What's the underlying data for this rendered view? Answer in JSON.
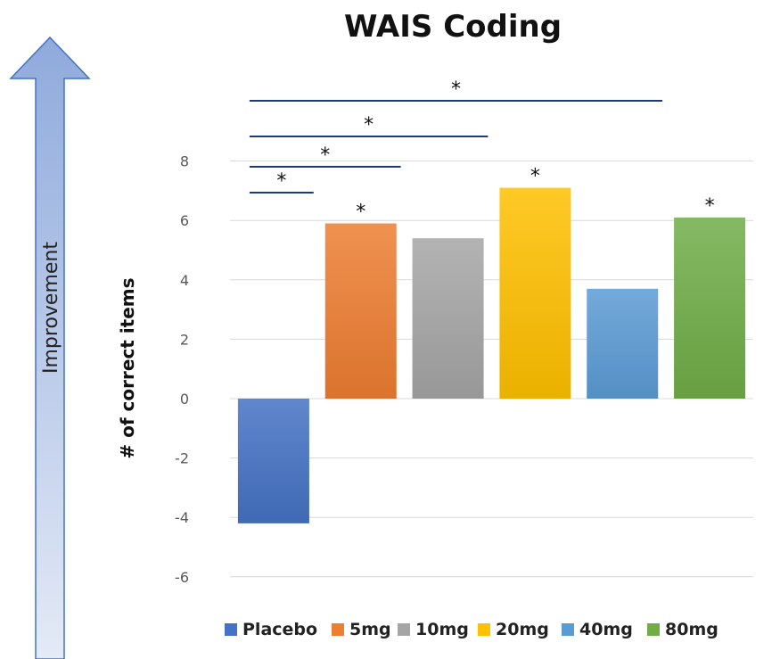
{
  "chart_data": {
    "type": "bar",
    "title": "WAIS Coding",
    "ylabel": "# of correct items",
    "side_label": "Improvement",
    "categories": [
      "Placebo",
      "5mg",
      "10mg",
      "20mg",
      "40mg",
      "80mg"
    ],
    "values": [
      -4.2,
      5.9,
      5.4,
      7.1,
      3.7,
      6.1
    ],
    "colors": [
      "#4472C4",
      "#ED7D31",
      "#A5A5A5",
      "#FFC000",
      "#5B9BD5",
      "#70AD47"
    ],
    "significant": [
      false,
      true,
      false,
      true,
      false,
      true
    ],
    "bracket_targets": [
      "5mg",
      "10mg",
      "20mg",
      "80mg"
    ],
    "marker": "*",
    "ylim": [
      -7,
      9
    ],
    "yticks": [
      -6,
      -4,
      -2,
      0,
      2,
      4,
      6,
      8
    ],
    "grid": true,
    "legend": "bottom"
  }
}
